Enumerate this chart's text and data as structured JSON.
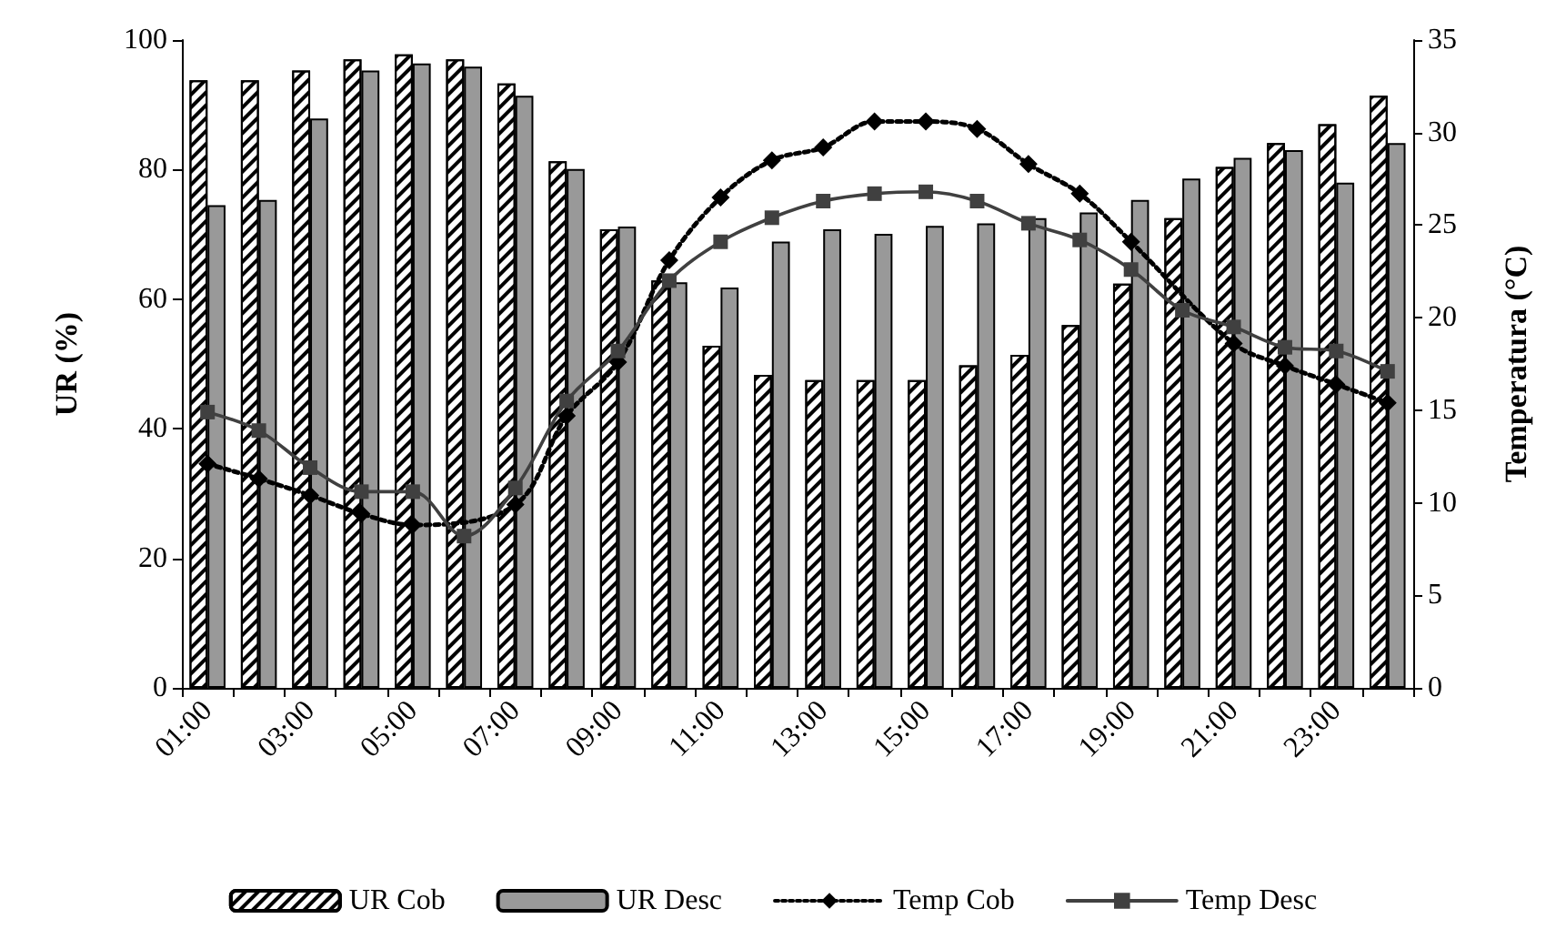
{
  "chart_data": {
    "type": "bar",
    "ylabel": "UR (%)",
    "y2label": "Temperatura (°C)",
    "categories": [
      "01:00",
      null,
      "03:00",
      null,
      "05:00",
      null,
      "07:00",
      null,
      "09:00",
      null,
      "11:00",
      null,
      "13:00",
      null,
      "15:00",
      null,
      "17:00",
      null,
      "19:00",
      null,
      "21:00",
      null,
      "23:00",
      null
    ],
    "series": [
      {
        "name": "UR Cob",
        "color": "#ffffff",
        "values": [
          93.8,
          93.8,
          95.3,
          97,
          97.8,
          97,
          93.3,
          81.3,
          70.8,
          62.9,
          52.8,
          48.3,
          47.5,
          47.5,
          47.5,
          49.8,
          51.4,
          56,
          62.4,
          72.5,
          80.4,
          84.1,
          87,
          91.4
        ]
      },
      {
        "name": "UR Desc",
        "color": "#999999",
        "values": [
          74.5,
          75.3,
          87.9,
          95.3,
          96.4,
          95.9,
          91.4,
          80.1,
          71.2,
          62.6,
          61.8,
          68.9,
          70.8,
          70.1,
          71.3,
          71.7,
          72.5,
          73.4,
          75.3,
          78.6,
          81.8,
          83,
          78,
          84.1
        ]
      },
      {
        "name": "Temp Cob",
        "type": "line",
        "axis": "y2",
        "color": "#000000",
        "marker": "diamond",
        "line_style": "dotted",
        "values": [
          12.1,
          11.3,
          10.4,
          9.4,
          8.8,
          null,
          9.9,
          14.7,
          17.6,
          23.1,
          26.5,
          28.5,
          29.2,
          30.6,
          30.6,
          30.2,
          28.3,
          26.7,
          24.1,
          null,
          18.6,
          17.4,
          16.4,
          15.4
        ]
      },
      {
        "name": "Temp Desc",
        "type": "line",
        "axis": "y2",
        "color": "#404040",
        "marker": "square",
        "line_style": "solid",
        "values": [
          14.9,
          13.9,
          11.9,
          10.6,
          10.6,
          8.2,
          10.8,
          15.5,
          18.2,
          22,
          24.1,
          25.4,
          26.3,
          26.7,
          26.8,
          26.3,
          25.1,
          24.2,
          22.6,
          20.4,
          19.5,
          18.4,
          18.2,
          17.1
        ]
      }
    ],
    "ylim": [
      0,
      100
    ],
    "yticks": [
      0,
      20,
      40,
      60,
      80,
      100
    ],
    "y2lim": [
      0,
      35
    ],
    "y2ticks": [
      0,
      5,
      10,
      15,
      20,
      25,
      30,
      35
    ],
    "grid": false,
    "legend": "bottom"
  }
}
